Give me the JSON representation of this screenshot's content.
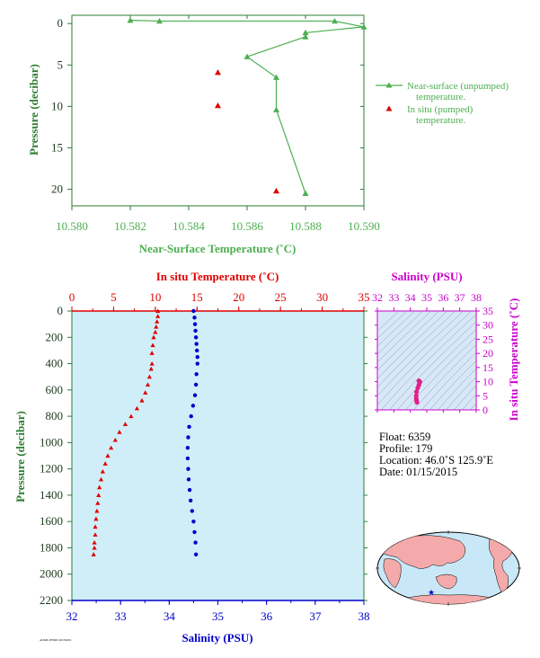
{
  "colors": {
    "green": "#4caf50",
    "axis_green": "#2e7d32",
    "red": "#e00000",
    "blue": "#0000cc",
    "magenta": "#cc00cc",
    "text_dark": "#1b3a1b",
    "panel_bg": "#d0eef8",
    "ts_bg": "#d8e8f8",
    "ts_contour": "#8899aa",
    "land": "#f4aaaa",
    "ocean": "#c8e8f8"
  },
  "chart_data": [
    {
      "type": "line",
      "xlabel": "Near-Surface Temperature (˚C)",
      "ylabel": "Pressure (decibar)",
      "xlim": [
        10.58,
        10.59
      ],
      "ylim": [
        22,
        -1
      ],
      "x_ticks": [
        "10.580",
        "10.582",
        "10.584",
        "10.586",
        "10.588",
        "10.590"
      ],
      "y_ticks": [
        "0",
        "5",
        "10",
        "15",
        "20"
      ],
      "legend_position": "right",
      "series": [
        {
          "name": "Near-surface (unpumped) temperature.",
          "marker": "triangle",
          "points": [
            [
              10.582,
              -0.4
            ],
            [
              10.583,
              -0.3
            ],
            [
              10.589,
              -0.3
            ],
            [
              10.59,
              0.4
            ],
            [
              10.588,
              1.1
            ],
            [
              10.588,
              1.6
            ],
            [
              10.586,
              4.0
            ],
            [
              10.587,
              6.5
            ],
            [
              10.587,
              10.4
            ],
            [
              10.588,
              20.5
            ]
          ]
        },
        {
          "name": "In situ (pumped) temperature.",
          "marker": "triangle",
          "style": "points",
          "points": [
            [
              10.585,
              5.9
            ],
            [
              10.585,
              9.9
            ],
            [
              10.587,
              20.2
            ]
          ]
        }
      ]
    },
    {
      "type": "scatter",
      "ylabel": "Pressure (decibar)",
      "ylim": [
        2200,
        0
      ],
      "y_ticks": [
        "0",
        "200",
        "400",
        "600",
        "800",
        "1000",
        "1200",
        "1400",
        "1600",
        "1800",
        "2000",
        "2200"
      ],
      "top_axis": {
        "label": "In situ Temperature (˚C)",
        "range": [
          0,
          35
        ],
        "ticks": [
          "0",
          "5",
          "10",
          "15",
          "20",
          "25",
          "30",
          "35"
        ]
      },
      "bottom_axis": {
        "label": "Salinity (PSU)",
        "range": [
          32,
          38
        ],
        "ticks": [
          "32",
          "33",
          "34",
          "35",
          "36",
          "37",
          "38"
        ]
      },
      "series": [
        {
          "name": "In situ Temperature (˚C)",
          "marker": "triangle",
          "points": [
            [
              10.3,
              0
            ],
            [
              10.3,
              40
            ],
            [
              10.2,
              80
            ],
            [
              10.1,
              120
            ],
            [
              10.0,
              160
            ],
            [
              9.8,
              200
            ],
            [
              9.7,
              260
            ],
            [
              9.6,
              320
            ],
            [
              9.6,
              400
            ],
            [
              9.5,
              440
            ],
            [
              9.3,
              500
            ],
            [
              9.1,
              560
            ],
            [
              8.8,
              620
            ],
            [
              8.4,
              680
            ],
            [
              7.8,
              740
            ],
            [
              7.1,
              800
            ],
            [
              6.4,
              860
            ],
            [
              5.7,
              920
            ],
            [
              5.2,
              980
            ],
            [
              4.7,
              1040
            ],
            [
              4.3,
              1100
            ],
            [
              4.0,
              1160
            ],
            [
              3.7,
              1220
            ],
            [
              3.5,
              1280
            ],
            [
              3.3,
              1340
            ],
            [
              3.2,
              1400
            ],
            [
              3.1,
              1460
            ],
            [
              3.0,
              1520
            ],
            [
              2.9,
              1580
            ],
            [
              2.8,
              1640
            ],
            [
              2.8,
              1700
            ],
            [
              2.7,
              1760
            ],
            [
              2.7,
              1800
            ],
            [
              2.6,
              1850
            ]
          ]
        },
        {
          "name": "Salinity (PSU)",
          "marker": "circle",
          "points": [
            [
              34.5,
              0
            ],
            [
              34.52,
              50
            ],
            [
              34.53,
              100
            ],
            [
              34.54,
              150
            ],
            [
              34.55,
              200
            ],
            [
              34.56,
              250
            ],
            [
              34.57,
              300
            ],
            [
              34.58,
              350
            ],
            [
              34.58,
              400
            ],
            [
              34.56,
              480
            ],
            [
              34.55,
              560
            ],
            [
              34.53,
              640
            ],
            [
              34.49,
              720
            ],
            [
              34.45,
              800
            ],
            [
              34.41,
              880
            ],
            [
              34.39,
              960
            ],
            [
              34.38,
              1040
            ],
            [
              34.38,
              1120
            ],
            [
              34.39,
              1200
            ],
            [
              34.4,
              1280
            ],
            [
              34.42,
              1360
            ],
            [
              34.44,
              1440
            ],
            [
              34.47,
              1520
            ],
            [
              34.5,
              1600
            ],
            [
              34.52,
              1680
            ],
            [
              34.54,
              1760
            ],
            [
              34.55,
              1850
            ]
          ]
        }
      ]
    },
    {
      "type": "scatter",
      "xlabel": "Salinity (PSU)",
      "ylabel": "In situ Temperature (˚C)",
      "xlim": [
        32,
        38
      ],
      "ylim": [
        0,
        35
      ],
      "x_ticks": [
        "32",
        "33",
        "34",
        "35",
        "36",
        "37",
        "38"
      ],
      "y_ticks": [
        "0",
        "5",
        "10",
        "15",
        "20",
        "25",
        "30",
        "35"
      ],
      "series": [
        {
          "marker": "circle",
          "points": [
            [
              34.4,
              2.7
            ],
            [
              34.38,
              3.3
            ],
            [
              34.36,
              4.0
            ],
            [
              34.36,
              5.0
            ],
            [
              34.38,
              6.4
            ],
            [
              34.45,
              7.8
            ],
            [
              34.52,
              8.8
            ],
            [
              34.56,
              9.6
            ],
            [
              34.58,
              10.0
            ],
            [
              34.52,
              10.3
            ]
          ]
        }
      ]
    }
  ],
  "info": {
    "float": "Float: 6359",
    "profile": "Profile: 179",
    "location": "Location: 46.0˚S 125.9˚E",
    "date": "Date: 01/15/2015"
  },
  "footer_code": "AOML/PHOD 20150201"
}
